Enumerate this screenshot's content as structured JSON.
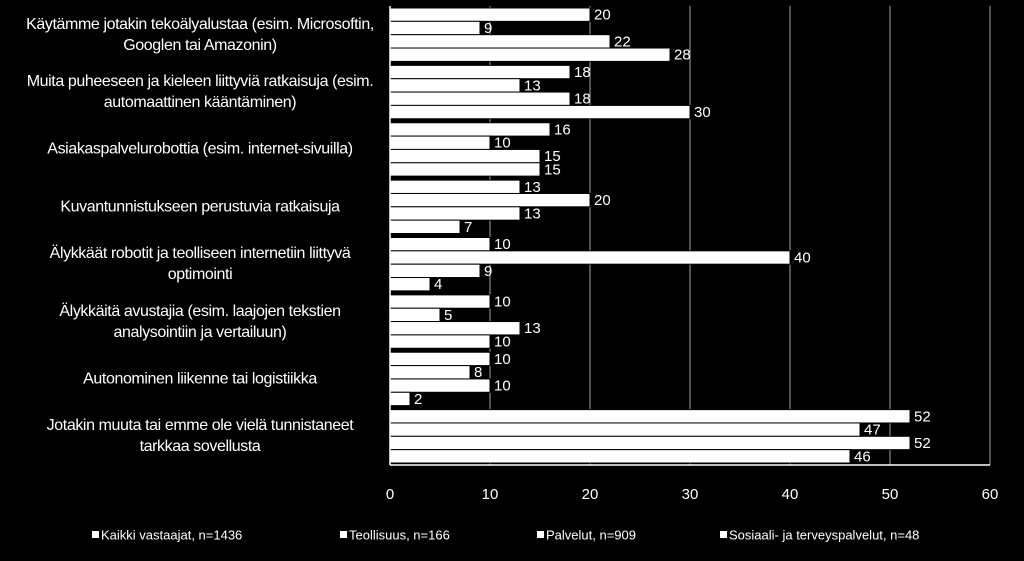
{
  "chart_data": {
    "type": "bar",
    "orientation": "horizontal",
    "categories": [
      "Käytämme jotakin tekoälyalustaa (esim. Microsoftin, Googlen tai Amazonin)",
      "Muita puheeseen ja kieleen liittyviä ratkaisuja (esim. automaattinen kääntäminen)",
      "Asiakaspalvelurobottia (esim. internet-sivuilla)",
      "Kuvantunnistukseen perustuvia ratkaisuja",
      "Älykkäät robotit ja teolliseen internetiin liittyvä optimointi",
      "Älykkäitä avustajia (esim. laajojen tekstien analysointiin ja vertailuun)",
      "Autonominen liikenne tai logistiikka",
      "Jotakin muuta tai emme ole vielä tunnistaneet tarkkaa sovellusta"
    ],
    "series": [
      {
        "name": "Kaikki vastaajat, n=1436",
        "color": "#ffffff",
        "values": [
          20,
          18,
          16,
          13,
          10,
          10,
          10,
          52
        ]
      },
      {
        "name": "Teollisuus, n=166",
        "color": "#ffffff",
        "values": [
          9,
          13,
          10,
          20,
          40,
          5,
          8,
          47
        ]
      },
      {
        "name": "Palvelut, n=909",
        "color": "#ffffff",
        "values": [
          22,
          18,
          15,
          13,
          9,
          13,
          10,
          52
        ]
      },
      {
        "name": "Sosiaali- ja terveyspalvelut, n=48",
        "color": "#ffffff",
        "values": [
          28,
          30,
          15,
          7,
          4,
          10,
          2,
          46
        ]
      }
    ],
    "xlim": [
      0,
      60
    ],
    "xticks": [
      0,
      10,
      20,
      30,
      40,
      50,
      60
    ],
    "grid": true
  }
}
